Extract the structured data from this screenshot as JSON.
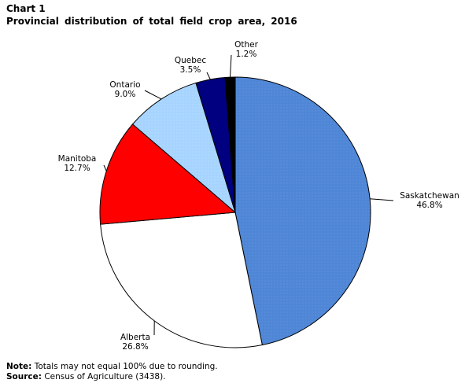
{
  "chart_label": "Chart 1",
  "chart_data": {
    "type": "pie",
    "title": "Provincial distribution of total field crop area, 2016",
    "slices": [
      {
        "name": "Saskatchewan",
        "value": 46.8,
        "label": "46.8%",
        "color": "#4f86d6"
      },
      {
        "name": "Alberta",
        "value": 26.8,
        "label": "26.8%",
        "color": "#ffffff"
      },
      {
        "name": "Manitoba",
        "value": 12.7,
        "label": "12.7%",
        "color": "#ff0000"
      },
      {
        "name": "Ontario",
        "value": 9.0,
        "label": "9.0%",
        "color": "#a6d4ff"
      },
      {
        "name": "Quebec",
        "value": 3.5,
        "label": "3.5%",
        "color": "#000080"
      },
      {
        "name": "Other",
        "value": 1.2,
        "label": "1.2%",
        "color": "#000000"
      }
    ]
  },
  "footer": {
    "note_label": "Note:",
    "note_text": "Totals may not equal 100% due to rounding.",
    "source_label": "Source:",
    "source_text": "Census of Agriculture (3438)."
  }
}
